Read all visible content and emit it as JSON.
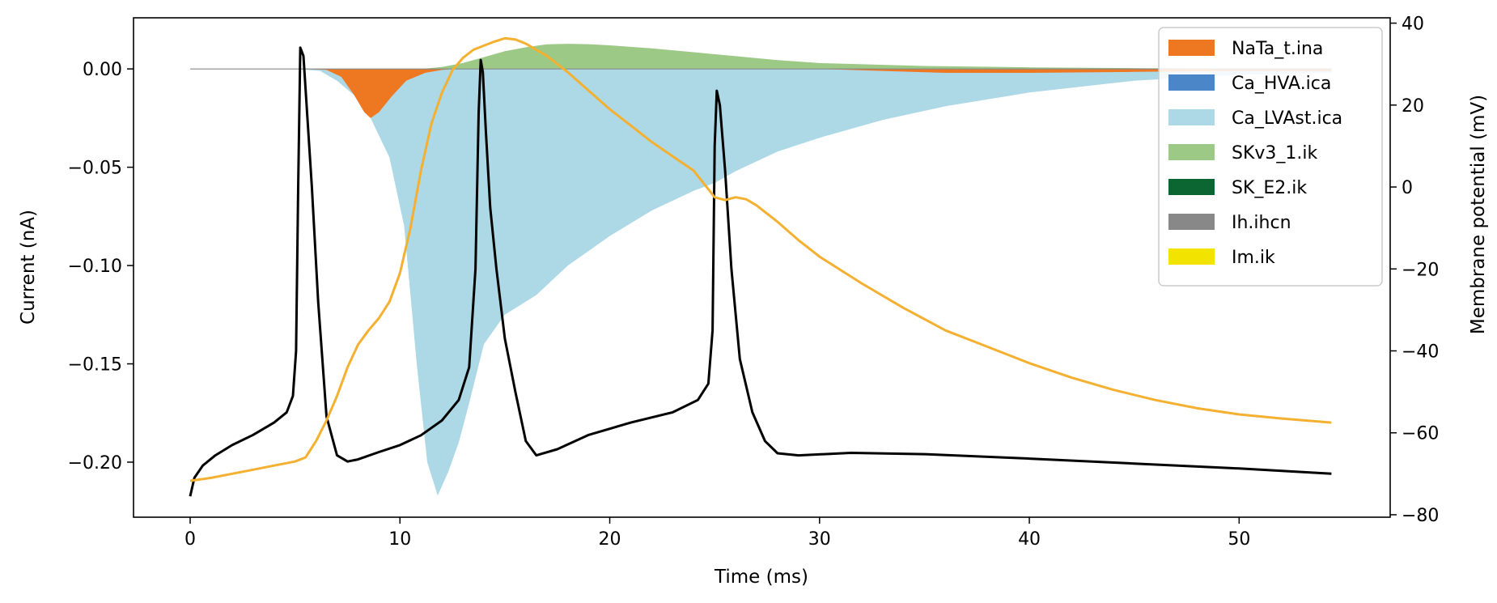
{
  "chart_data": {
    "type": "area",
    "xlabel": "Time (ms)",
    "ylabel": "Current (nA)",
    "y2label": "Membrane potential (mV)",
    "xlim": [
      -2.7,
      57.2
    ],
    "ylim": [
      -0.228,
      0.026
    ],
    "y2lim": [
      -80.6,
      41.3
    ],
    "x_ticks": [
      0,
      10,
      20,
      30,
      40,
      50
    ],
    "y_ticks": [
      0.0,
      -0.05,
      -0.1,
      -0.15,
      -0.2
    ],
    "y_tick_labels": [
      "0.00",
      "−0.05",
      "−0.10",
      "−0.15",
      "−0.20"
    ],
    "y2_ticks": [
      40,
      20,
      0,
      -20,
      -40,
      -60,
      -80
    ],
    "y2_tick_labels": [
      "40",
      "20",
      "0",
      "−20",
      "−40",
      "−60",
      "−80"
    ],
    "grid": false,
    "legend_position": "top-right",
    "colors": {
      "NaTa_t.ina": "#ee7722",
      "Ca_HVA.ica": "#4a86c8",
      "Ca_LVAst.ica": "#add8e6",
      "SKv3_1.ik": "#9cc986",
      "SK_E2.ik": "#0b6632",
      "Ih.ihcn": "#888888",
      "Im.ik": "#f2e400",
      "membrane": "#000000",
      "total_current": "#f4b030"
    },
    "legend": [
      "NaTa_t.ina",
      "Ca_HVA.ica",
      "Ca_LVAst.ica",
      "SKv3_1.ik",
      "SK_E2.ik",
      "Ih.ihcn",
      "Im.ik"
    ],
    "areas": [
      {
        "name": "Ca_LVAst.ica",
        "axis": "left",
        "x": [
          0,
          5,
          6.2,
          7,
          8,
          8.6,
          9.5,
          10.2,
          10.8,
          11.3,
          11.8,
          12.3,
          12.8,
          13.3,
          14,
          15,
          16.5,
          18,
          20,
          22,
          24,
          25,
          26,
          28,
          30,
          33,
          36,
          40,
          45,
          50,
          54.4
        ],
        "y": [
          0,
          0,
          -0.001,
          -0.006,
          -0.015,
          -0.025,
          -0.045,
          -0.08,
          -0.15,
          -0.2,
          -0.217,
          -0.205,
          -0.19,
          -0.17,
          -0.14,
          -0.125,
          -0.115,
          -0.1,
          -0.085,
          -0.072,
          -0.062,
          -0.058,
          -0.052,
          -0.042,
          -0.035,
          -0.026,
          -0.019,
          -0.012,
          -0.006,
          -0.003,
          -0.002
        ]
      },
      {
        "name": "NaTa_t.ina",
        "axis": "left",
        "x": [
          0,
          5.5,
          6.5,
          7.2,
          7.8,
          8.3,
          8.6,
          9.0,
          9.6,
          10.3,
          11.2,
          12.0,
          12.5,
          13,
          30,
          33,
          36,
          40,
          45,
          50,
          54.4
        ],
        "y": [
          0,
          0,
          -0.0005,
          -0.004,
          -0.013,
          -0.022,
          -0.025,
          -0.022,
          -0.014,
          -0.006,
          -0.002,
          -0.0005,
          0,
          0,
          0,
          -0.001,
          -0.002,
          -0.002,
          -0.0015,
          -0.001,
          -0.001
        ]
      },
      {
        "name": "SKv3_1.ik",
        "axis": "left",
        "x": [
          0,
          11,
          12,
          13,
          14,
          15,
          16,
          17,
          18,
          19,
          20,
          22,
          24,
          26,
          28,
          30,
          35,
          40,
          45,
          50,
          54.4
        ],
        "y": [
          0,
          0,
          0.001,
          0.003,
          0.006,
          0.009,
          0.011,
          0.0125,
          0.0128,
          0.0126,
          0.012,
          0.0105,
          0.0085,
          0.0065,
          0.0045,
          0.003,
          0.0015,
          0.0008,
          0.0004,
          0.0002,
          0.0001
        ]
      }
    ],
    "series": [
      {
        "name": "Ih.ihcn",
        "axis": "left",
        "x": [
          0,
          54.4
        ],
        "y": [
          0,
          0
        ]
      },
      {
        "name": "membrane",
        "axis": "right",
        "x": [
          0,
          0.2,
          0.6,
          1.2,
          2.0,
          3.0,
          4.0,
          4.6,
          4.9,
          5.05,
          5.15,
          5.25,
          5.4,
          5.6,
          5.8,
          6.1,
          6.5,
          7.0,
          7.5,
          8.0,
          9,
          10,
          11,
          12,
          12.8,
          13.3,
          13.6,
          13.75,
          13.85,
          13.95,
          14.1,
          14.3,
          14.6,
          15.0,
          15.5,
          16.0,
          16.5,
          17.5,
          19,
          21,
          23,
          24.2,
          24.7,
          24.9,
          25.0,
          25.1,
          25.25,
          25.5,
          25.8,
          26.2,
          26.8,
          27.4,
          28.0,
          29,
          31.5,
          35,
          40,
          45,
          50,
          54.4
        ],
        "y": [
          -75.5,
          -71,
          -68,
          -65.5,
          -63,
          -60.5,
          -57.5,
          -55,
          -51,
          -40,
          0,
          34,
          32,
          16,
          0,
          -28,
          -56,
          -65.5,
          -67,
          -66.5,
          -64.7,
          -63,
          -60.6,
          -57,
          -52,
          -44,
          -20,
          18,
          31,
          28,
          13,
          -5,
          -20,
          -37,
          -50,
          -62,
          -65.5,
          -64,
          -60.5,
          -57.5,
          -55,
          -52,
          -48,
          -35,
          10,
          23.5,
          20,
          4,
          -20,
          -42,
          -55,
          -62,
          -65,
          -65.5,
          -64.9,
          -65.2,
          -66.3,
          -67.5,
          -68.7,
          -70
        ]
      },
      {
        "name": "total_current",
        "axis": "right",
        "x": [
          0,
          1,
          2,
          3,
          4,
          5,
          5.5,
          6,
          6.5,
          7,
          7.5,
          8,
          8.5,
          9,
          9.5,
          10,
          10.5,
          11,
          11.5,
          12,
          12.5,
          13,
          13.5,
          14,
          14.5,
          15,
          15.5,
          16,
          17,
          18,
          19,
          20,
          21,
          22,
          23,
          24,
          25,
          25.5,
          26,
          26.5,
          27,
          28,
          29,
          30,
          32,
          34,
          36,
          38,
          40,
          42,
          44,
          46,
          48,
          50,
          52,
          54.4
        ],
        "y": [
          -71.7,
          -71,
          -70,
          -69,
          -68,
          -67,
          -66,
          -62,
          -57,
          -51,
          -44,
          -38.5,
          -35,
          -32,
          -28,
          -21,
          -10,
          4,
          15.5,
          23,
          28.5,
          31.5,
          33.5,
          34.5,
          35.5,
          36.3,
          36,
          35,
          32,
          28,
          23.5,
          19,
          15,
          11,
          7.5,
          4,
          -2.5,
          -3.2,
          -2.5,
          -3,
          -4.5,
          -8.5,
          -13,
          -17,
          -23.5,
          -29.5,
          -35,
          -39,
          -43,
          -46.5,
          -49.5,
          -52,
          -54,
          -55.5,
          -56.5,
          -57.5
        ]
      }
    ]
  }
}
